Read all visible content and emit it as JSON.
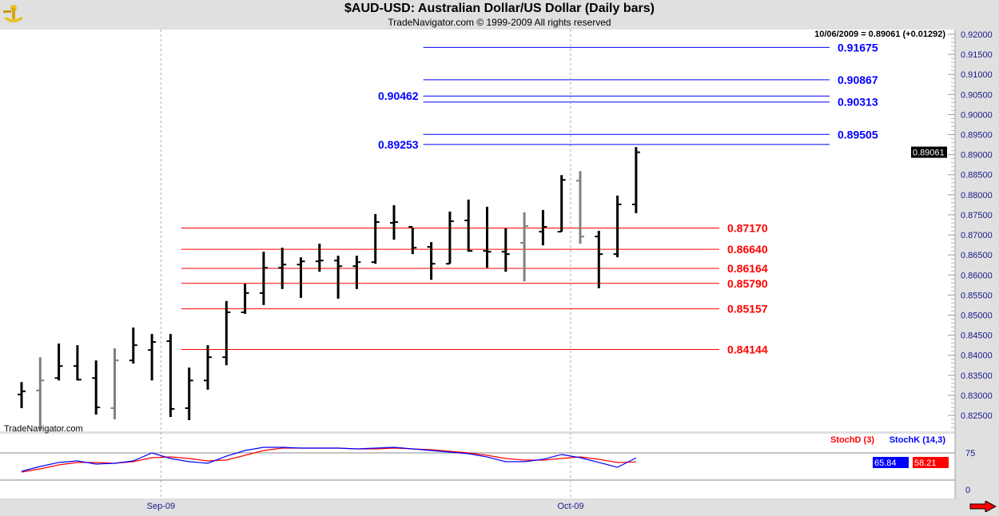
{
  "header": {
    "title": "$AUD-USD:  Australian Dollar/US Dollar  (Daily bars)",
    "subtitle": "TradeNavigator.com © 1999-2009 All rights reserved",
    "last_quote": "10/06/2009 = 0.89061 (+0.01292)",
    "watermark": "TradeNavigator.com"
  },
  "colors": {
    "up": "#000000",
    "neutral": "#808080",
    "blue_level": "#0000ff",
    "red_level": "#ff0000",
    "stochD": "#ff0000",
    "stochK": "#0000ff"
  },
  "chart_data": [
    {
      "type": "ohlc",
      "title": "$AUD-USD Daily bars",
      "ylim": [
        0.8215,
        0.9225
      ],
      "y_ticks": [
        "0.92000",
        "0.91500",
        "0.91000",
        "0.90500",
        "0.90000",
        "0.89500",
        "0.89000",
        "0.88500",
        "0.88000",
        "0.87500",
        "0.87000",
        "0.86500",
        "0.86000",
        "0.85500",
        "0.85000",
        "0.84500",
        "0.84000",
        "0.83500",
        "0.83000",
        "0.82500"
      ],
      "x_labels": [
        {
          "label": "Sep-09",
          "bar_index": 8
        },
        {
          "label": "Oct-09",
          "bar_index": 30
        }
      ],
      "last_price_label": "0.89061",
      "bars": [
        {
          "o": 0.8302,
          "h": 0.8333,
          "l": 0.8268,
          "c": 0.831,
          "color": "up"
        },
        {
          "o": 0.8312,
          "h": 0.8395,
          "l": 0.8216,
          "c": 0.8337,
          "color": "neutral"
        },
        {
          "o": 0.8343,
          "h": 0.8429,
          "l": 0.8337,
          "c": 0.8373,
          "color": "up"
        },
        {
          "o": 0.8373,
          "h": 0.8425,
          "l": 0.8337,
          "c": 0.8339,
          "color": "up"
        },
        {
          "o": 0.8343,
          "h": 0.8387,
          "l": 0.8252,
          "c": 0.827,
          "color": "up"
        },
        {
          "o": 0.8268,
          "h": 0.8417,
          "l": 0.824,
          "c": 0.8387,
          "color": "neutral"
        },
        {
          "o": 0.8387,
          "h": 0.8469,
          "l": 0.8379,
          "c": 0.8425,
          "color": "up"
        },
        {
          "o": 0.8413,
          "h": 0.8453,
          "l": 0.8337,
          "c": 0.8433,
          "color": "up"
        },
        {
          "o": 0.8435,
          "h": 0.8453,
          "l": 0.8246,
          "c": 0.8266,
          "color": "up"
        },
        {
          "o": 0.8268,
          "h": 0.8369,
          "l": 0.8238,
          "c": 0.8337,
          "color": "up"
        },
        {
          "o": 0.8337,
          "h": 0.8425,
          "l": 0.8314,
          "c": 0.8395,
          "color": "up"
        },
        {
          "o": 0.8395,
          "h": 0.8535,
          "l": 0.8375,
          "c": 0.8507,
          "color": "up"
        },
        {
          "o": 0.8507,
          "h": 0.8578,
          "l": 0.8503,
          "c": 0.8555,
          "color": "up"
        },
        {
          "o": 0.8555,
          "h": 0.8658,
          "l": 0.8525,
          "c": 0.8618,
          "color": "up"
        },
        {
          "o": 0.8618,
          "h": 0.8668,
          "l": 0.8565,
          "c": 0.8626,
          "color": "up"
        },
        {
          "o": 0.8626,
          "h": 0.8644,
          "l": 0.8543,
          "c": 0.8634,
          "color": "up"
        },
        {
          "o": 0.8634,
          "h": 0.8678,
          "l": 0.8608,
          "c": 0.8636,
          "color": "up"
        },
        {
          "o": 0.8636,
          "h": 0.8648,
          "l": 0.8541,
          "c": 0.8622,
          "color": "up"
        },
        {
          "o": 0.8622,
          "h": 0.8648,
          "l": 0.8565,
          "c": 0.8632,
          "color": "up"
        },
        {
          "o": 0.8632,
          "h": 0.8752,
          "l": 0.8628,
          "c": 0.8732,
          "color": "up"
        },
        {
          "o": 0.873,
          "h": 0.8774,
          "l": 0.8688,
          "c": 0.8732,
          "color": "up"
        },
        {
          "o": 0.872,
          "h": 0.8718,
          "l": 0.8652,
          "c": 0.8668,
          "color": "up"
        },
        {
          "o": 0.867,
          "h": 0.8682,
          "l": 0.8588,
          "c": 0.8628,
          "color": "up"
        },
        {
          "o": 0.8628,
          "h": 0.8758,
          "l": 0.8628,
          "c": 0.8734,
          "color": "up"
        },
        {
          "o": 0.8736,
          "h": 0.8788,
          "l": 0.8658,
          "c": 0.866,
          "color": "up"
        },
        {
          "o": 0.866,
          "h": 0.877,
          "l": 0.8618,
          "c": 0.8658,
          "color": "up"
        },
        {
          "o": 0.8658,
          "h": 0.8716,
          "l": 0.8608,
          "c": 0.8652,
          "color": "up"
        },
        {
          "o": 0.868,
          "h": 0.8756,
          "l": 0.8584,
          "c": 0.8722,
          "color": "neutral"
        },
        {
          "o": 0.8708,
          "h": 0.8762,
          "l": 0.8674,
          "c": 0.872,
          "color": "up"
        },
        {
          "o": 0.8708,
          "h": 0.8849,
          "l": 0.8708,
          "c": 0.8837,
          "color": "up"
        },
        {
          "o": 0.8835,
          "h": 0.8859,
          "l": 0.8678,
          "c": 0.8696,
          "color": "neutral"
        },
        {
          "o": 0.8696,
          "h": 0.871,
          "l": 0.8567,
          "c": 0.8652,
          "color": "up"
        },
        {
          "o": 0.8652,
          "h": 0.8798,
          "l": 0.8644,
          "c": 0.8776,
          "color": "up"
        },
        {
          "o": 0.8776,
          "h": 0.8919,
          "l": 0.8754,
          "c": 0.8906,
          "color": "up"
        }
      ],
      "levels": [
        {
          "value": 0.91675,
          "label": "0.91675",
          "color": "blue",
          "label_side": "right",
          "from_bar": 22
        },
        {
          "value": 0.90867,
          "label": "0.90867",
          "color": "blue",
          "label_side": "right",
          "from_bar": 22
        },
        {
          "value": 0.90462,
          "label": "0.90462",
          "color": "blue",
          "label_side": "left",
          "from_bar": 22
        },
        {
          "value": 0.90313,
          "label": "0.90313",
          "color": "blue",
          "label_side": "right",
          "from_bar": 22
        },
        {
          "value": 0.89505,
          "label": "0.89505",
          "color": "blue",
          "label_side": "right",
          "from_bar": 22
        },
        {
          "value": 0.89253,
          "label": "0.89253",
          "color": "blue",
          "label_side": "left",
          "from_bar": 22
        },
        {
          "value": 0.8717,
          "label": "0.87170",
          "color": "red",
          "label_side": "right",
          "from_bar": 9
        },
        {
          "value": 0.8664,
          "label": "0.86640",
          "color": "red",
          "label_side": "right",
          "from_bar": 9
        },
        {
          "value": 0.86164,
          "label": "0.86164",
          "color": "red",
          "label_side": "right",
          "from_bar": 9
        },
        {
          "value": 0.8579,
          "label": "0.85790",
          "color": "red",
          "label_side": "right",
          "from_bar": 9
        },
        {
          "value": 0.85157,
          "label": "0.85157",
          "color": "red",
          "label_side": "right",
          "from_bar": 9
        },
        {
          "value": 0.84144,
          "label": "0.84144",
          "color": "red",
          "label_side": "right",
          "from_bar": 9
        }
      ]
    },
    {
      "type": "line",
      "title": "Stochastic",
      "ylim": [
        0,
        100
      ],
      "y_ticks": [
        "75",
        "0"
      ],
      "legend": [
        "StochD (3)",
        "StochK (14,3)"
      ],
      "legend_placement": "top-right",
      "series": [
        {
          "name": "StochD (3)",
          "color": "red",
          "last_label": "58.21",
          "values": [
            39.7,
            45.6,
            52.9,
            57.4,
            57.4,
            55.9,
            58.8,
            66.2,
            67.6,
            64.7,
            60.3,
            61.8,
            70.6,
            79.4,
            83.8,
            83.8,
            83.8,
            83.8,
            82.4,
            82.4,
            83.8,
            82.4,
            80.9,
            77.9,
            75.0,
            70.6,
            64.7,
            61.8,
            61.8,
            64.7,
            67.6,
            63.2,
            57.4,
            58.2
          ]
        },
        {
          "name": "StochK (14,3)",
          "color": "blue",
          "last_label": "65.84",
          "values": [
            41.2,
            50.0,
            57.4,
            60.3,
            54.4,
            55.9,
            60.3,
            75.0,
            64.7,
            58.8,
            55.9,
            69.1,
            79.4,
            85.3,
            85.3,
            83.8,
            83.8,
            83.8,
            82.4,
            83.8,
            85.3,
            82.4,
            79.4,
            76.5,
            73.5,
            67.6,
            58.8,
            58.8,
            63.2,
            72.1,
            66.2,
            57.4,
            48.5,
            65.8
          ]
        }
      ]
    }
  ]
}
